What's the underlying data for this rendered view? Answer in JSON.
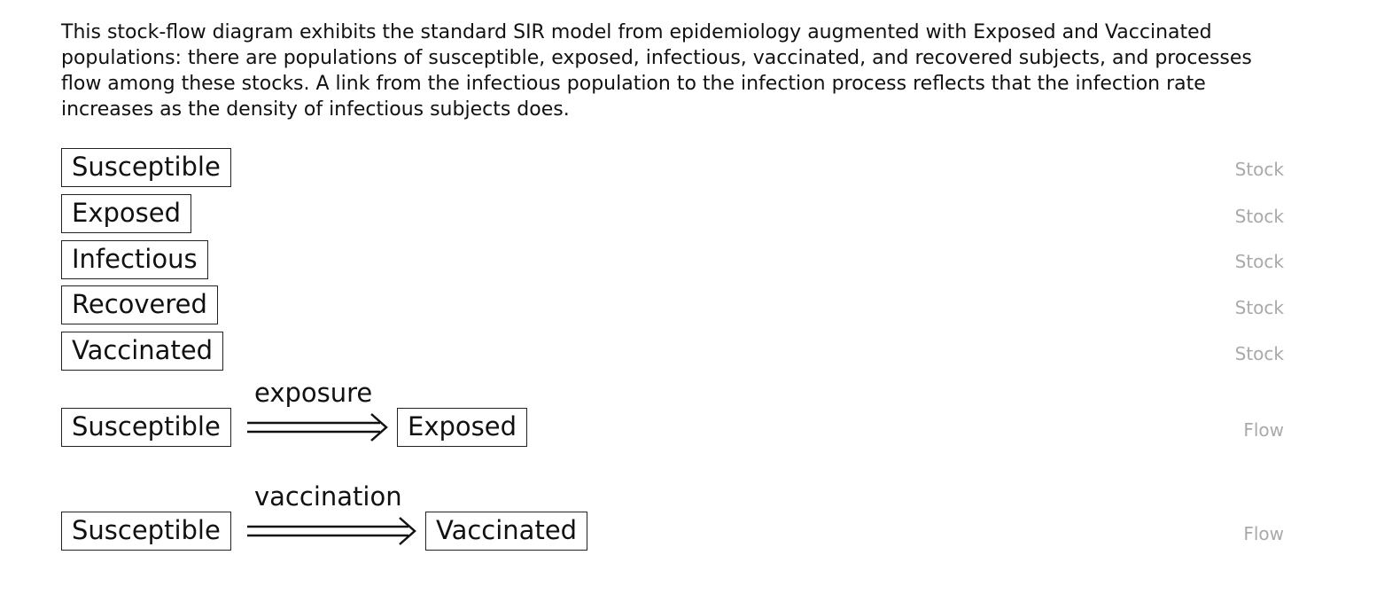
{
  "description": "This stock-flow diagram exhibits the standard SIR model from epidemiology augmented with Exposed and Vaccinated populations: there are populations of susceptible, exposed, infectious, vaccinated, and recovered subjects, and processes flow among these stocks. A link from the infectious population to the infection process reflects that the infection rate increases as the density of infectious subjects does.",
  "stocks": [
    {
      "label": "Susceptible",
      "kind": "Stock"
    },
    {
      "label": "Exposed",
      "kind": "Stock"
    },
    {
      "label": "Infectious",
      "kind": "Stock"
    },
    {
      "label": "Recovered",
      "kind": "Stock"
    },
    {
      "label": "Vaccinated",
      "kind": "Stock"
    }
  ],
  "flows": [
    {
      "source": "Susceptible",
      "label": "exposure",
      "target": "Exposed",
      "kind": "Flow"
    },
    {
      "source": "Susceptible",
      "label": "vaccination",
      "target": "Vaccinated",
      "kind": "Flow"
    }
  ]
}
